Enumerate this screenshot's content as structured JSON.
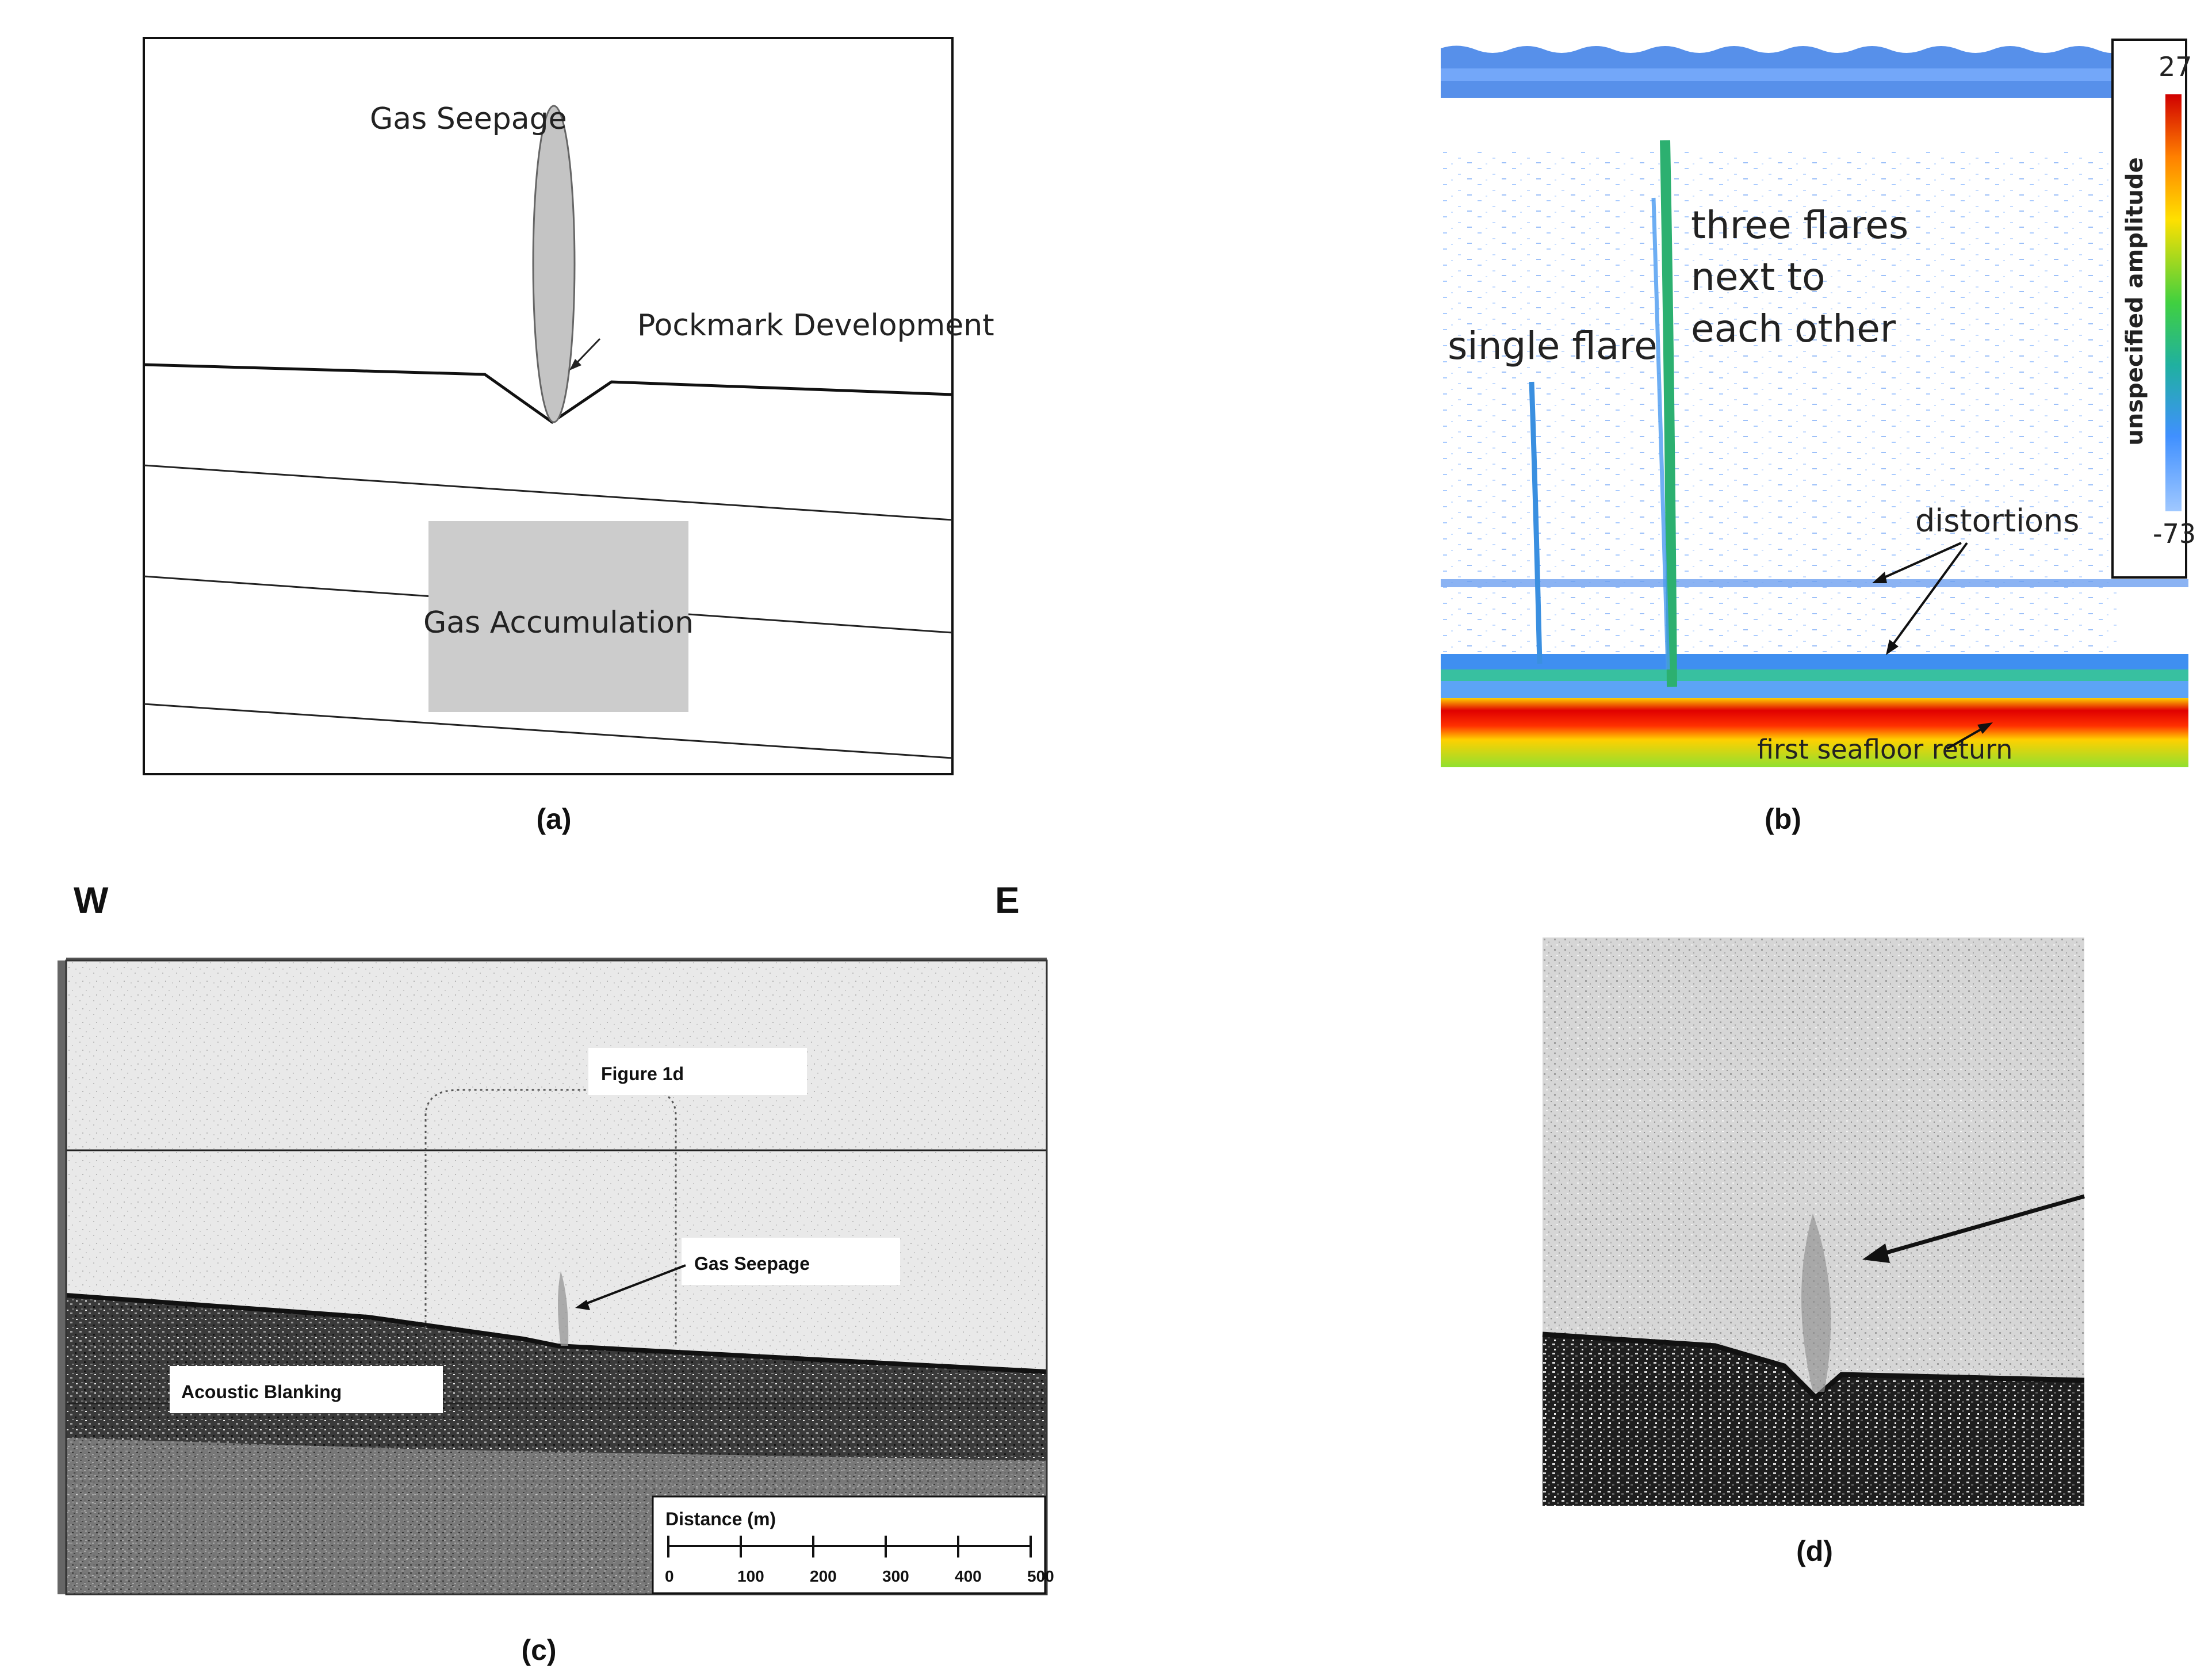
{
  "panel_a": {
    "labels": {
      "gas_seepage": "Gas Seepage",
      "pockmark": "Pockmark Development",
      "gas_accumulation": "Gas Accumulation"
    },
    "caption": "(a)"
  },
  "panel_b": {
    "labels": {
      "single_flare": "single flare",
      "three_flares_1": "three flares",
      "three_flares_2": "next to",
      "three_flares_3": "each other",
      "distortions": "distortions",
      "seafloor": "first seafloor return"
    },
    "colorbar": {
      "title": "unspecified amplitude",
      "max": "27",
      "min": "-73",
      "colors": [
        "#d00000",
        "#ff8000",
        "#ffe000",
        "#40d040",
        "#20b0a0",
        "#4090ff",
        "#a0c8ff"
      ]
    },
    "caption": "(b)"
  },
  "panel_c": {
    "direction_left": "W",
    "direction_right": "E",
    "labels": {
      "figure_1d": "Figure 1d",
      "gas_seepage": "Gas Seepage",
      "acoustic_blanking": "Acoustic Blanking"
    },
    "scale": {
      "title": "Distance (m)",
      "ticks": [
        "0",
        "100",
        "200",
        "300",
        "400",
        "500"
      ]
    },
    "caption": "(c)"
  },
  "panel_d": {
    "caption": "(d)"
  }
}
